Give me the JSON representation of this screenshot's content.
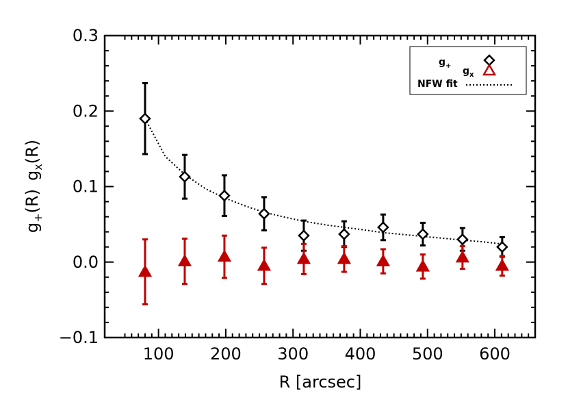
{
  "chart_data": {
    "type": "scatter",
    "xlabel": "R [arcsec]",
    "ylabel": "g+(R) gx(R)",
    "ylabel_parts": {
      "a_base": "g",
      "a_sub": "+",
      "a_rest": "(R)",
      "b_base": "g",
      "b_sub": "x",
      "b_rest": "(R)"
    },
    "xlim": [
      20,
      660
    ],
    "ylim": [
      -0.1,
      0.3
    ],
    "xticks": [
      "100",
      "200",
      "300",
      "400",
      "500",
      "600"
    ],
    "xtick_values": [
      100,
      200,
      300,
      400,
      500,
      600
    ],
    "yticks": [
      "−0.1",
      "0.0",
      "0.1",
      "0.2",
      "0.3"
    ],
    "ytick_values": [
      -0.1,
      0.0,
      0.1,
      0.2,
      0.3
    ],
    "grid": false,
    "legend_position": "top-right",
    "legend": [
      {
        "base": "g",
        "sub": "+",
        "marker": "diamond",
        "color": "#000000"
      },
      {
        "base": "g",
        "sub": "x",
        "marker": "triangle",
        "color": "#c00000"
      },
      {
        "label": "NFW fit",
        "style": "dotted",
        "color": "#000000"
      }
    ],
    "series": [
      {
        "name": "g+",
        "marker": "diamond",
        "color": "#000000",
        "x": [
          80,
          139,
          198,
          257,
          316,
          376,
          434,
          493,
          552,
          611
        ],
        "y": [
          0.19,
          0.113,
          0.088,
          0.064,
          0.035,
          0.037,
          0.046,
          0.037,
          0.03,
          0.02
        ],
        "err": [
          0.047,
          0.029,
          0.027,
          0.022,
          0.02,
          0.017,
          0.017,
          0.015,
          0.015,
          0.013
        ]
      },
      {
        "name": "gx",
        "marker": "triangle",
        "color": "#c00000",
        "x": [
          80,
          139,
          198,
          257,
          316,
          376,
          434,
          493,
          552,
          611
        ],
        "y": [
          -0.013,
          0.001,
          0.007,
          -0.005,
          0.004,
          0.004,
          0.001,
          -0.006,
          0.006,
          -0.005
        ],
        "err": [
          0.043,
          0.03,
          0.028,
          0.024,
          0.02,
          0.017,
          0.016,
          0.016,
          0.015,
          0.013
        ]
      },
      {
        "name": "NFW fit",
        "style": "dotted",
        "color": "#000000",
        "x": [
          80,
          110,
          139,
          170,
          198,
          230,
          257,
          290,
          316,
          350,
          376,
          410,
          434,
          470,
          493,
          530,
          552,
          580,
          611
        ],
        "y": [
          0.19,
          0.14,
          0.116,
          0.097,
          0.085,
          0.074,
          0.066,
          0.059,
          0.054,
          0.049,
          0.046,
          0.042,
          0.039,
          0.036,
          0.034,
          0.031,
          0.029,
          0.027,
          0.024
        ]
      }
    ]
  }
}
